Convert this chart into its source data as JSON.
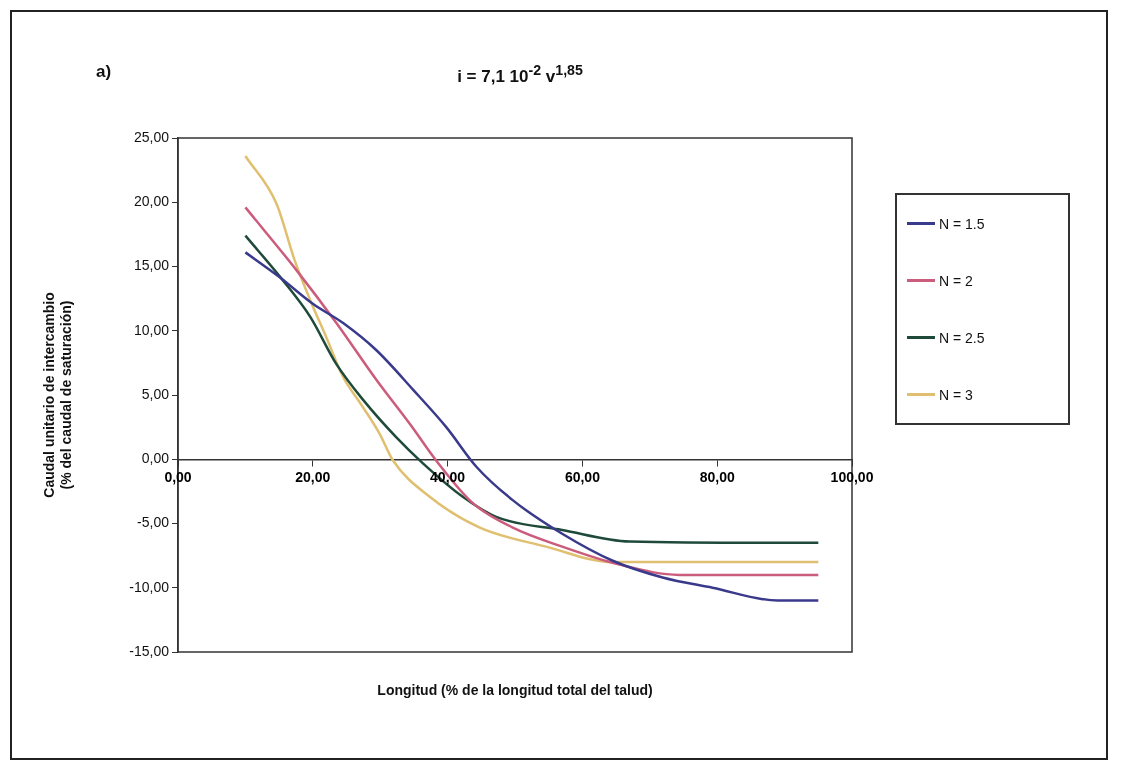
{
  "chart_data": {
    "type": "line",
    "title": "i = 7,1 10$^{-2}$  v$^{1,85}$",
    "annotations": [
      "a)"
    ],
    "xlabel": "Longitud  (% de la longitud total del talud)",
    "ylabel": "Caudal unitario de intercambio\n(% del caudal de saturación)",
    "xlim": [
      0,
      100
    ],
    "xticks": [
      {
        "value": 0,
        "label": "0,00"
      },
      {
        "value": 20,
        "label": "20,00"
      },
      {
        "value": 40,
        "label": "40,00"
      },
      {
        "value": 60,
        "label": "60,00"
      },
      {
        "value": 80,
        "label": "80,00"
      },
      {
        "value": 100,
        "label": "100,00"
      }
    ],
    "ylim": [
      -15,
      25
    ],
    "yticks": [
      {
        "value": -15,
        "label": "-15,00"
      },
      {
        "value": -10,
        "label": "-10,00"
      },
      {
        "value": -5,
        "label": "-5,00"
      },
      {
        "value": 0,
        "label": "0,00"
      },
      {
        "value": 5,
        "label": "5,00"
      },
      {
        "value": 10,
        "label": "10,00"
      },
      {
        "value": 15,
        "label": "15,00"
      },
      {
        "value": 20,
        "label": "20,00"
      },
      {
        "value": 25,
        "label": "25,00"
      }
    ],
    "grid": false,
    "legend": "right",
    "marker": "none",
    "line_style": "solid",
    "series": [
      {
        "name": "N = 1.5",
        "color": "#3a3a8c",
        "x": [
          10,
          15,
          20,
          24.5,
          29.4,
          34.9,
          39.8,
          44.3,
          49.7,
          57,
          64.5,
          71.9,
          79.3,
          89,
          95
        ],
        "values": [
          16.1,
          14.2,
          12.1,
          10.6,
          8.5,
          5.4,
          2.5,
          -0.6,
          -3.2,
          -5.8,
          -7.9,
          -9.2,
          -10,
          -11,
          -11
        ]
      },
      {
        "name": "N = 2",
        "color": "#cc5c7c",
        "x": [
          10,
          17.6,
          23.5,
          29.4,
          34.6,
          38.3,
          43.7,
          49.6,
          57,
          65.5,
          74.4,
          89,
          95
        ],
        "values": [
          19.6,
          14.7,
          10.6,
          6.2,
          2.6,
          -0.1,
          -3.4,
          -5.3,
          -6.8,
          -8.2,
          -9,
          -9,
          -9
        ]
      },
      {
        "name": "N = 2.5",
        "color": "#1f4a3a",
        "x": [
          10,
          15.6,
          19.6,
          23.5,
          27.5,
          32.4,
          36.3,
          42.2,
          47.3,
          57,
          67,
          89,
          95
        ],
        "values": [
          17.4,
          13.9,
          11.1,
          7.4,
          4.6,
          1.7,
          -0.3,
          -2.9,
          -4.5,
          -5.5,
          -6.4,
          -6.5,
          -6.5
        ]
      },
      {
        "name": "N = 3",
        "color": "#e0c070",
        "x": [
          10,
          14.6,
          17.3,
          19.6,
          22,
          24.5,
          27,
          29.9,
          31.9,
          37.3,
          44.7,
          54.6,
          64.5,
          89,
          95
        ],
        "values": [
          23.6,
          19.9,
          15.5,
          12.4,
          9.5,
          6.4,
          4.4,
          2,
          -0.1,
          -2.9,
          -5.3,
          -6.8,
          -8,
          -8,
          -8
        ]
      }
    ]
  }
}
